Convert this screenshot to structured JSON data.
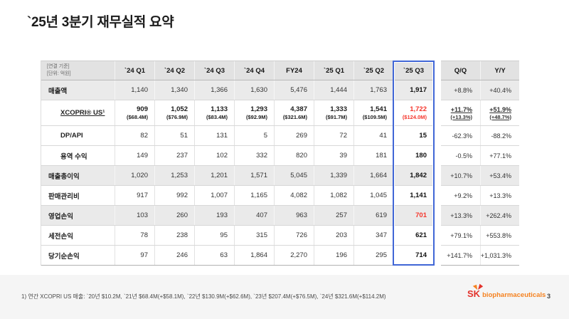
{
  "title": "`25년 3분기 재무실적 요약",
  "table": {
    "unit_note_line1": "[연결 기준]",
    "unit_note_line2": "[단위: 억원]",
    "columns": [
      "`24 Q1",
      "`24 Q2",
      "`24 Q3",
      "`24 Q4",
      "FY24",
      "`25 Q1",
      "`25 Q2",
      "`25 Q3"
    ],
    "delta_columns": [
      "Q/Q",
      "Y/Y"
    ],
    "highlight_column": "`25 Q3",
    "rows": [
      {
        "label": "매출액",
        "shaded": true,
        "values": [
          "1,140",
          "1,340",
          "1,366",
          "1,630",
          "5,476",
          "1,444",
          "1,763",
          "1,917"
        ],
        "qq": "+8.8%",
        "yy": "+40.4%"
      },
      {
        "label": "XCOPRI® US¹",
        "indent": true,
        "underline_label": true,
        "bold_values": true,
        "values": [
          "909",
          "1,052",
          "1,133",
          "1,293",
          "4,387",
          "1,333",
          "1,541",
          "1,722"
        ],
        "sub_values": [
          "($68.4M)",
          "($76.9M)",
          "($83.4M)",
          "($92.9M)",
          "($321.6M)",
          "($91.7M)",
          "($109.5M)",
          "($124.0M)"
        ],
        "q3_red": true,
        "qq": "+11.7%",
        "qq_sub": "(+13.3%)",
        "yy": "+51.9%",
        "yy_sub": "(+48.7%)"
      },
      {
        "label": "DP/API",
        "indent": true,
        "values": [
          "82",
          "51",
          "131",
          "5",
          "269",
          "72",
          "41",
          "15"
        ],
        "qq": "-62.3%",
        "yy": "-88.2%"
      },
      {
        "label": "용역 수익",
        "indent": true,
        "values": [
          "149",
          "237",
          "102",
          "332",
          "820",
          "39",
          "181",
          "180"
        ],
        "qq": "-0.5%",
        "yy": "+77.1%"
      },
      {
        "label": "매출총이익",
        "shaded": true,
        "values": [
          "1,020",
          "1,253",
          "1,201",
          "1,571",
          "5,045",
          "1,339",
          "1,664",
          "1,842"
        ],
        "qq": "+10.7%",
        "yy": "+53.4%"
      },
      {
        "label": "판매관리비",
        "values": [
          "917",
          "992",
          "1,007",
          "1,165",
          "4,082",
          "1,082",
          "1,045",
          "1,141"
        ],
        "qq": "+9.2%",
        "yy": "+13.3%"
      },
      {
        "label": "영업손익",
        "shaded": true,
        "values": [
          "103",
          "260",
          "193",
          "407",
          "963",
          "257",
          "619",
          "701"
        ],
        "q3_red": true,
        "qq": "+13.3%",
        "yy": "+262.4%"
      },
      {
        "label": "세전손익",
        "values": [
          "78",
          "238",
          "95",
          "315",
          "726",
          "203",
          "347",
          "621"
        ],
        "qq": "+79.1%",
        "yy": "+553.8%"
      },
      {
        "label": "당기순손익",
        "values": [
          "97",
          "246",
          "63",
          "1,864",
          "2,270",
          "196",
          "295",
          "714"
        ],
        "qq": "+141.7%",
        "yy": "+1,031.3%"
      }
    ]
  },
  "footnote": "1) 연간 XCOPRI US 매출: `20년 $10.2M, `21년 $68.4M(+$58.1M), `22년 $130.9M(+$62.6M), `23년 $207.4M(+$76.5M), `24년 $321.6M(+$114.2M)",
  "footer": {
    "logo_sk": "SK",
    "logo_text": "biopharmaceuticals",
    "page_number": "3"
  },
  "colors": {
    "accent_blue": "#4066d6",
    "negative_red": "#f5352b",
    "header_gray": "#e2e2e2",
    "shaded_row_gray": "#eaeaea",
    "logo_red": "#e3322c",
    "logo_orange": "#f58220"
  }
}
